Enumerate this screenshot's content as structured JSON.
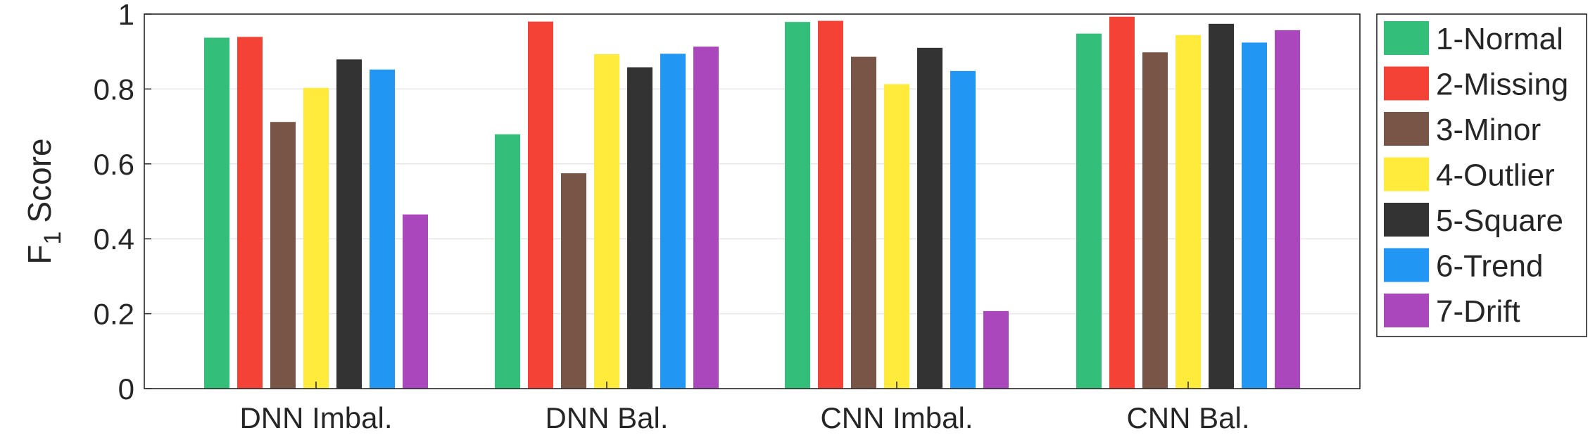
{
  "chart_data": {
    "type": "bar",
    "title": "",
    "xlabel": "",
    "ylabel": {
      "main": "F",
      "subscript": "1",
      "suffix": "Score"
    },
    "ylim": [
      0,
      1
    ],
    "yticks": [
      "0",
      "0.2",
      "0.4",
      "0.6",
      "0.8",
      "1"
    ],
    "grid": "horizontal",
    "legend_position": "right-outside",
    "categories": [
      "DNN Imbal.",
      "DNN Bal.",
      "CNN Imbal.",
      "CNN Bal."
    ],
    "series": [
      {
        "name": "1-Normal",
        "color": "#33bf7a",
        "values": [
          0.937,
          0.679,
          0.979,
          0.948
        ]
      },
      {
        "name": "2-Missing",
        "color": "#f44336",
        "values": [
          0.939,
          0.98,
          0.982,
          0.993
        ]
      },
      {
        "name": "3-Minor",
        "color": "#795548",
        "values": [
          0.712,
          0.575,
          0.886,
          0.898
        ]
      },
      {
        "name": "4-Outlier",
        "color": "#ffeb3b",
        "values": [
          0.803,
          0.893,
          0.813,
          0.944
        ]
      },
      {
        "name": "5-Square",
        "color": "#333333",
        "values": [
          0.879,
          0.858,
          0.91,
          0.974
        ]
      },
      {
        "name": "6-Trend",
        "color": "#2196f3",
        "values": [
          0.852,
          0.894,
          0.848,
          0.924
        ]
      },
      {
        "name": "7-Drift",
        "color": "#ab47bc",
        "values": [
          0.465,
          0.913,
          0.207,
          0.957
        ]
      }
    ]
  }
}
